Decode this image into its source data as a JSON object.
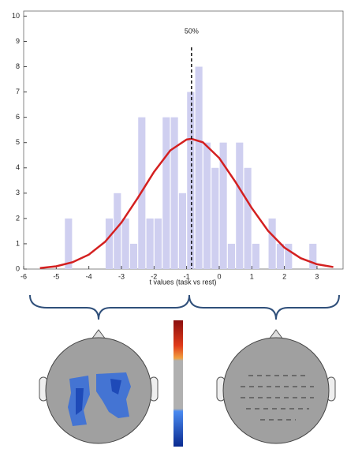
{
  "chart_data": {
    "type": "histogram",
    "xlabel": "t values (task vs rest)",
    "bins": [
      -4.75,
      -4.5,
      -4.25,
      -4.0,
      -3.75,
      -3.5,
      -3.25,
      -3.0,
      -2.75,
      -2.5,
      -2.25,
      -2.0,
      -1.75,
      -1.5,
      -1.25,
      -1.0,
      -0.75,
      -0.5,
      -0.25,
      0.0,
      0.25,
      0.5,
      0.75,
      1.0,
      1.25,
      1.5,
      1.75,
      2.0,
      2.25,
      2.5,
      2.75,
      3.0
    ],
    "counts": [
      2,
      0,
      0,
      0,
      0,
      2,
      3,
      2,
      1,
      6,
      2,
      2,
      6,
      6,
      3,
      7,
      8,
      5,
      4,
      5,
      1,
      5,
      4,
      1,
      0,
      2,
      1,
      1,
      0,
      0,
      1
    ],
    "color": "#cfcff0",
    "curve": {
      "color": "#d42020",
      "x": [
        -5.5,
        -5.0,
        -4.5,
        -4.0,
        -3.5,
        -3.0,
        -2.5,
        -2.0,
        -1.5,
        -1.0,
        -0.85,
        -0.5,
        0.0,
        0.5,
        1.0,
        1.5,
        2.0,
        2.5,
        3.0,
        3.5
      ],
      "y": [
        0.04,
        0.11,
        0.27,
        0.57,
        1.08,
        1.84,
        2.81,
        3.84,
        4.69,
        5.12,
        5.15,
        5.01,
        4.39,
        3.44,
        2.41,
        1.51,
        0.85,
        0.43,
        0.19,
        0.08
      ]
    },
    "vline": {
      "x": -0.85,
      "label": "50%"
    },
    "xlim": [
      -6,
      3.8
    ],
    "ylim": [
      0,
      10.2
    ],
    "xticks": [
      -6,
      -5,
      -4,
      -3,
      -2,
      -1,
      0,
      1,
      2,
      3
    ],
    "yticks": [
      0,
      1,
      2,
      3,
      4,
      5,
      6,
      7,
      8,
      9,
      10
    ]
  }
}
